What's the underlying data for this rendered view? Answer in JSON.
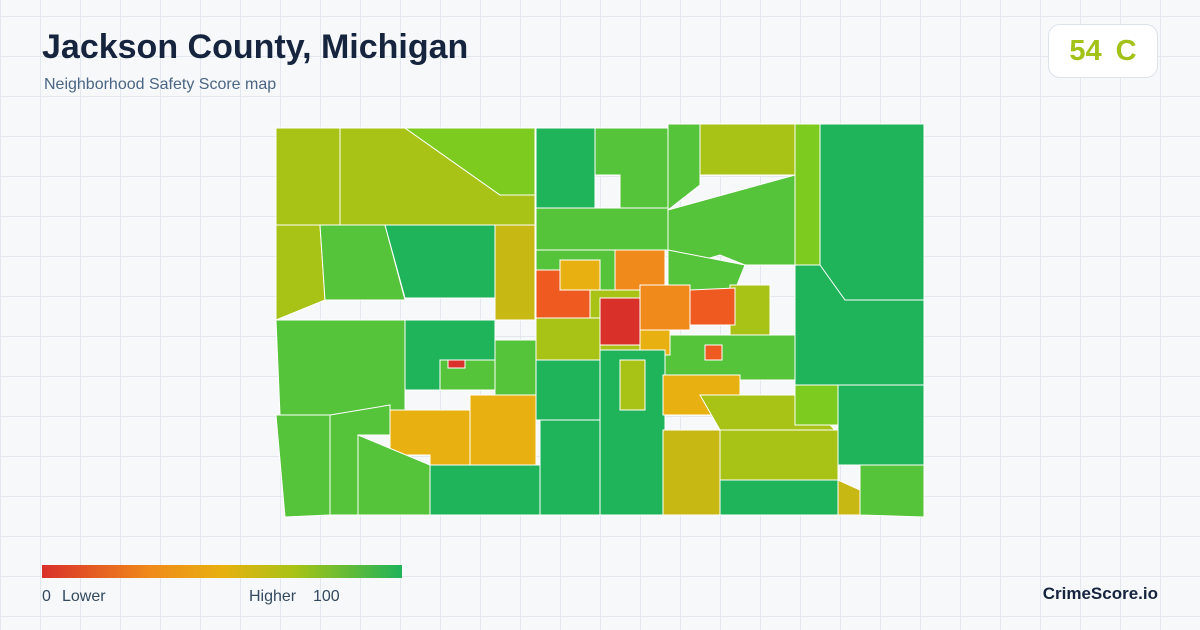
{
  "header": {
    "title": "Jackson County, Michigan",
    "subtitle": "Neighborhood Safety Score map"
  },
  "score": {
    "value": 54,
    "grade": "C"
  },
  "legend": {
    "min": 0,
    "min_label": "Lower",
    "max_label": "Higher",
    "max": 100
  },
  "brand": "CrimeScore.io"
}
